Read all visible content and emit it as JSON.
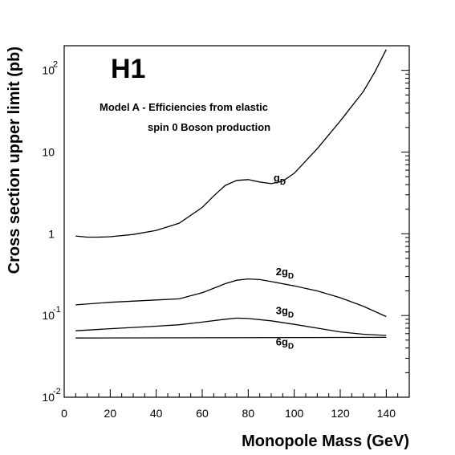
{
  "chart_data": {
    "type": "line",
    "logo": "H1",
    "title_line1": "Model A - Efficiencies from elastic",
    "title_line2": "spin 0 Boson production",
    "xlabel": "Monopole Mass (GeV)",
    "ylabel": "Cross section upper limit (pb)",
    "xlim": [
      0,
      150
    ],
    "ylim": [
      0.01,
      200
    ],
    "y_scale": "log",
    "x_ticks": [
      "0",
      "20",
      "40",
      "60",
      "80",
      "100",
      "120",
      "140"
    ],
    "y_ticks": [
      {
        "value": 0.01,
        "base": "10",
        "exp": "-2"
      },
      {
        "value": 0.1,
        "base": "10",
        "exp": "-1"
      },
      {
        "value": 1,
        "base": "1",
        "exp": ""
      },
      {
        "value": 10,
        "base": "10",
        "exp": ""
      },
      {
        "value": 100,
        "base": "10",
        "exp": "2"
      }
    ],
    "series": [
      {
        "name": "g",
        "name_sub": "D",
        "label_at": [
          91,
          4.4
        ],
        "x": [
          5,
          10,
          15,
          20,
          30,
          40,
          50,
          60,
          65,
          70,
          75,
          80,
          85,
          90,
          95,
          100,
          110,
          120,
          130,
          135,
          140
        ],
        "y": [
          0.94,
          0.91,
          0.91,
          0.92,
          0.98,
          1.1,
          1.35,
          2.1,
          2.9,
          3.9,
          4.5,
          4.6,
          4.3,
          4.1,
          4.4,
          5.5,
          11,
          24,
          55,
          95,
          180
        ]
      },
      {
        "name": "2g",
        "name_sub": "D",
        "label_at": [
          92,
          0.31
        ],
        "x": [
          5,
          20,
          40,
          50,
          60,
          70,
          75,
          80,
          85,
          90,
          100,
          110,
          120,
          130,
          140
        ],
        "y": [
          0.135,
          0.145,
          0.155,
          0.16,
          0.19,
          0.245,
          0.27,
          0.28,
          0.275,
          0.26,
          0.23,
          0.2,
          0.165,
          0.13,
          0.097
        ]
      },
      {
        "name": "3g",
        "name_sub": "D",
        "label_at": [
          92,
          0.104
        ],
        "x": [
          5,
          20,
          40,
          50,
          60,
          70,
          75,
          80,
          90,
          100,
          110,
          120,
          130,
          140
        ],
        "y": [
          0.065,
          0.069,
          0.074,
          0.077,
          0.083,
          0.09,
          0.093,
          0.092,
          0.086,
          0.078,
          0.07,
          0.063,
          0.059,
          0.057
        ]
      },
      {
        "name": "6g",
        "name_sub": "D",
        "label_at": [
          92,
          0.043
        ],
        "x": [
          5,
          140
        ],
        "y": [
          0.053,
          0.054
        ]
      }
    ]
  }
}
